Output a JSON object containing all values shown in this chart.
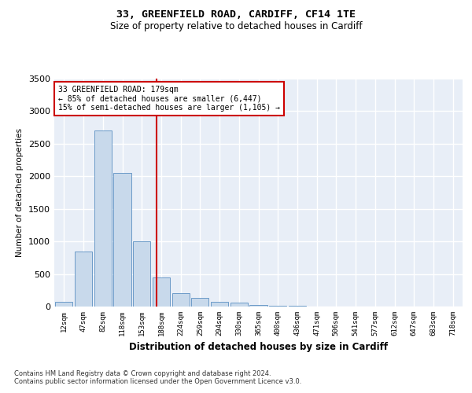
{
  "title1": "33, GREENFIELD ROAD, CARDIFF, CF14 1TE",
  "title2": "Size of property relative to detached houses in Cardiff",
  "xlabel": "Distribution of detached houses by size in Cardiff",
  "ylabel": "Number of detached properties",
  "bin_labels": [
    "12sqm",
    "47sqm",
    "82sqm",
    "118sqm",
    "153sqm",
    "188sqm",
    "224sqm",
    "259sqm",
    "294sqm",
    "330sqm",
    "365sqm",
    "400sqm",
    "436sqm",
    "471sqm",
    "506sqm",
    "541sqm",
    "577sqm",
    "612sqm",
    "647sqm",
    "683sqm",
    "718sqm"
  ],
  "bar_values": [
    75,
    850,
    2700,
    2050,
    1000,
    450,
    200,
    130,
    75,
    60,
    30,
    15,
    8,
    5,
    3,
    2,
    1,
    1,
    0,
    0,
    0
  ],
  "bar_color": "#c8d9eb",
  "bar_edge_color": "#5a8fc2",
  "background_color": "#e8eef7",
  "grid_color": "#ffffff",
  "vline_color": "#cc0000",
  "annotation_text": "33 GREENFIELD ROAD: 179sqm\n← 85% of detached houses are smaller (6,447)\n15% of semi-detached houses are larger (1,105) →",
  "annotation_box_color": "#ffffff",
  "annotation_box_edge_color": "#cc0000",
  "ylim": [
    0,
    3500
  ],
  "yticks": [
    0,
    500,
    1000,
    1500,
    2000,
    2500,
    3000,
    3500
  ],
  "fig_bg": "#ffffff",
  "footnote": "Contains HM Land Registry data © Crown copyright and database right 2024.\nContains public sector information licensed under the Open Government Licence v3.0."
}
